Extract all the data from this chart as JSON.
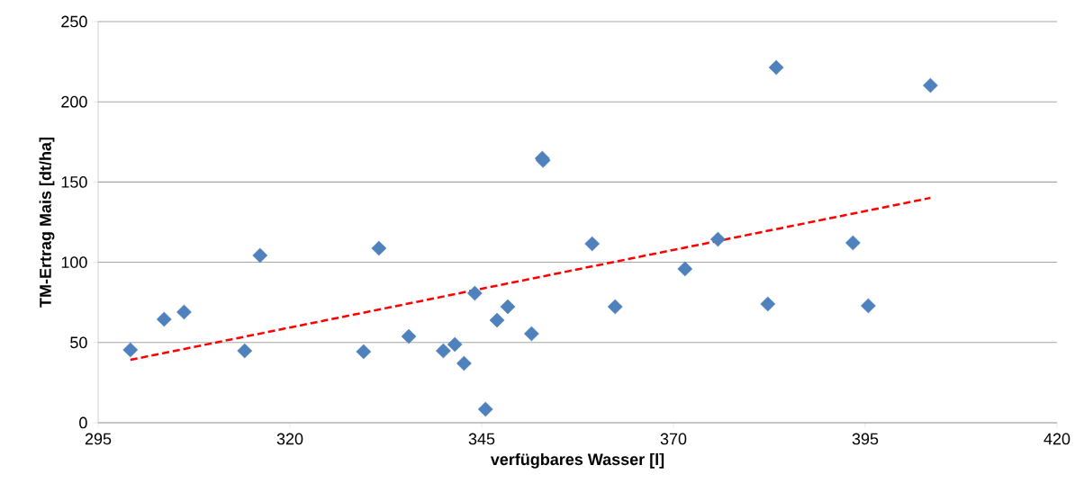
{
  "chart_data": {
    "type": "scatter",
    "xlabel": "verfügbares Wasser [l]",
    "ylabel": "TM-Ertrag Mais [dt/ha]",
    "xlim": [
      295,
      420
    ],
    "xticks": [
      295,
      320,
      345,
      370,
      395,
      420
    ],
    "ylim": [
      0,
      250
    ],
    "yticks": [
      0,
      50,
      100,
      150,
      200,
      250
    ],
    "grid": "y",
    "series": [
      {
        "color": "#4f81bd",
        "marker": "diamond",
        "x": [
          299.2,
          303.6,
          306.2,
          314.1,
          316.1,
          329.6,
          331.6,
          335.5,
          340.0,
          341.5,
          342.7,
          344.1,
          345.5,
          347.0,
          348.4,
          351.5,
          352.9,
          353.0,
          359.4,
          362.4,
          371.5,
          375.8,
          382.3,
          383.4,
          393.4,
          395.4,
          403.5
        ],
        "values": [
          45.4,
          64.5,
          69,
          44.8,
          104.3,
          44.3,
          108.7,
          53.8,
          44.8,
          48.8,
          37,
          80.7,
          8.4,
          63.9,
          72.3,
          55.5,
          164.8,
          163.5,
          111.5,
          72.3,
          95.9,
          114.3,
          74,
          221.4,
          112.1,
          72.9,
          210.2
        ]
      },
      {
        "type": "line",
        "color": "#ff0000",
        "marker": "none",
        "line_style": "dashed",
        "x": [
          299.2,
          403.5
        ],
        "values": [
          39.2,
          140.1
        ]
      }
    ]
  }
}
